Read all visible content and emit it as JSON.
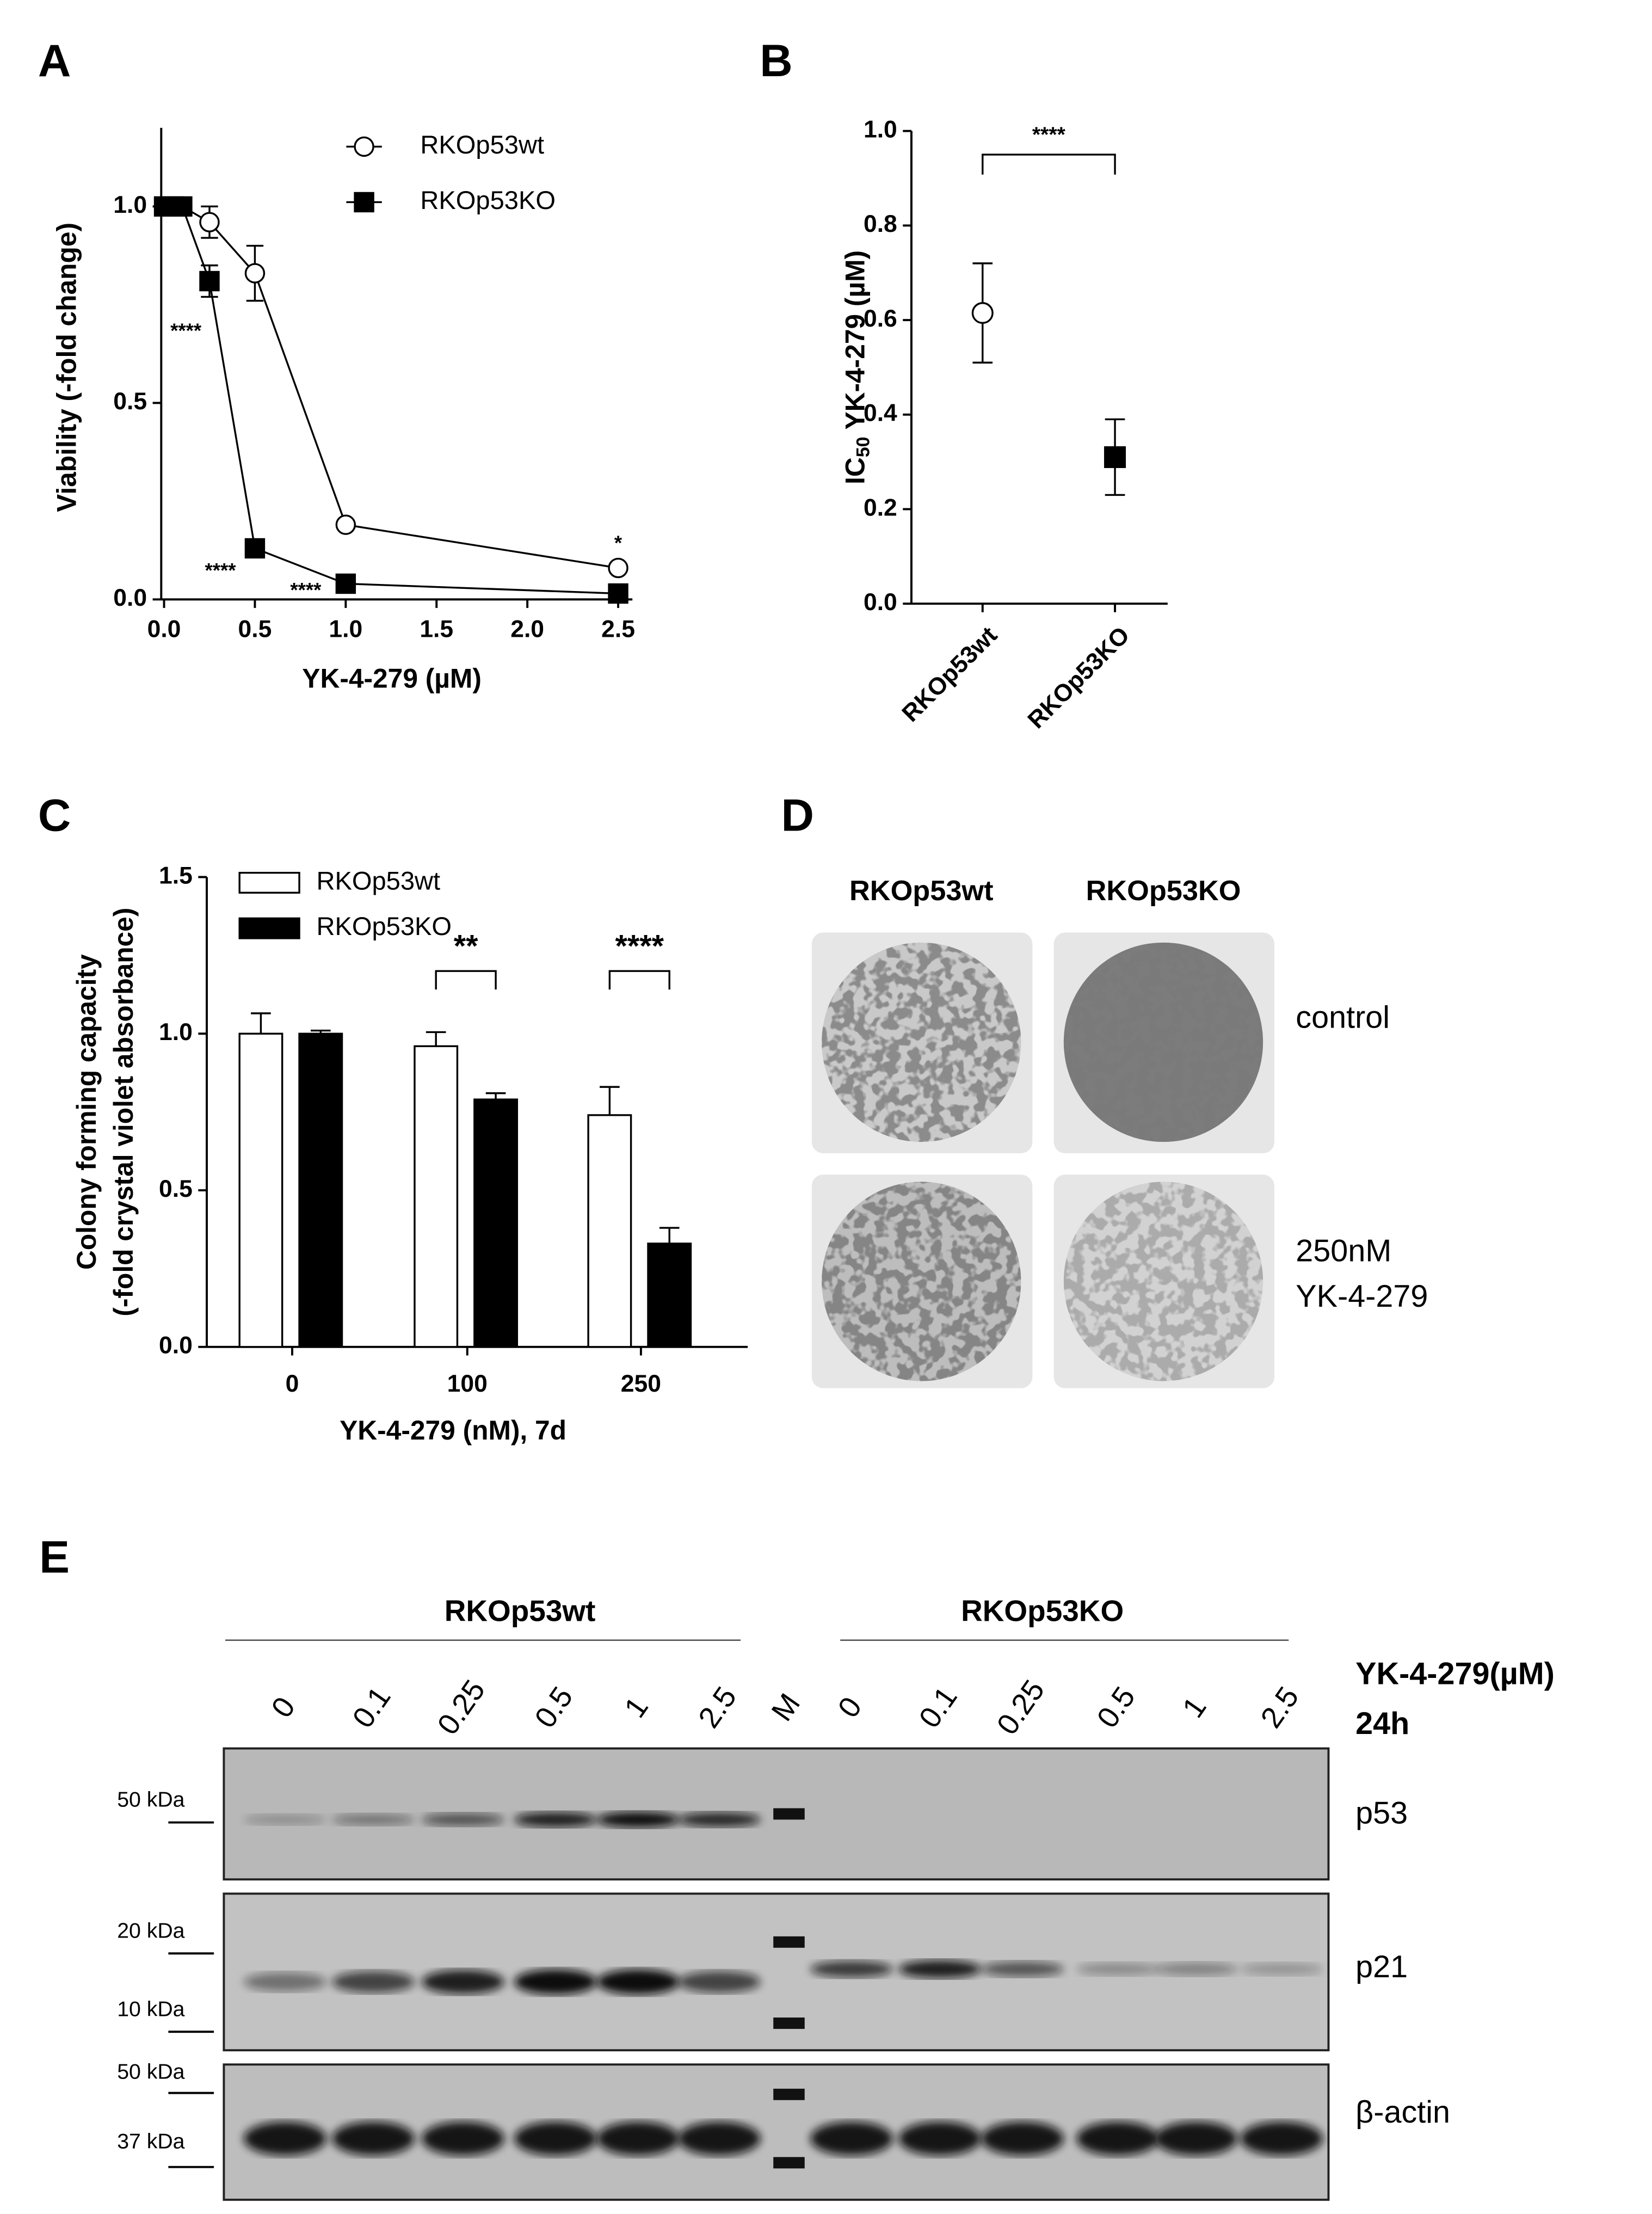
{
  "chart_data": [
    {
      "panel": "A",
      "type": "line",
      "x_label": "YK-4-279 (µM)",
      "y_label": "Viability (-fold change)",
      "x": [
        0,
        0.05,
        0.1,
        0.25,
        0.5,
        1,
        2.5
      ],
      "series": [
        {
          "name": "RKOp53wt",
          "color": "#ffffff",
          "marker": "circle",
          "values": [
            1.0,
            1.0,
            1.0,
            0.96,
            0.83,
            0.19,
            0.08
          ],
          "errors": [
            0.02,
            0.02,
            0.02,
            0.04,
            0.07,
            0.01,
            0.01
          ]
        },
        {
          "name": "RKOp53KO",
          "color": "#000000",
          "marker": "square",
          "values": [
            1.0,
            1.0,
            1.0,
            0.81,
            0.13,
            0.04,
            0.015
          ],
          "errors": [
            0.02,
            0.02,
            0.02,
            0.04,
            0.01,
            0.01,
            0.01
          ]
        }
      ],
      "xlim": [
        0,
        2.5
      ],
      "ylim": [
        0,
        1.2
      ],
      "xticks": [
        {
          "value": 0,
          "label": "0.0"
        },
        {
          "value": 0.5,
          "label": "0.5"
        },
        {
          "value": 1,
          "label": "1.0"
        },
        {
          "value": 1.5,
          "label": "1.5"
        },
        {
          "value": 2,
          "label": "2.0"
        },
        2.5
      ],
      "yticks": [
        {
          "value": 0,
          "label": "0.0"
        },
        0.5,
        {
          "value": 1,
          "label": "1.0"
        }
      ],
      "annotations": [
        {
          "text": "****",
          "x": 0.12,
          "y": 0.68
        },
        {
          "text": "****",
          "x": 0.31,
          "y": 0.07
        },
        {
          "text": "****",
          "x": 0.78,
          "y": 0.02
        },
        {
          "text": "*",
          "x": 2.5,
          "y": 0.14
        }
      ]
    },
    {
      "panel": "B",
      "type": "scatter",
      "y_label": {
        "prefix": "IC",
        "sub": "50",
        "rest": " YK-4-279 (µM)"
      },
      "categories": [
        "RKOp53wt",
        "RKOp53KO"
      ],
      "values": [
        0.615,
        0.31
      ],
      "errors": [
        0.105,
        0.08
      ],
      "markers": [
        "circle",
        "square"
      ],
      "colors": [
        "#ffffff",
        "#000000"
      ],
      "ylim": [
        0,
        1.0
      ],
      "yticks": [
        {
          "value": 0,
          "label": "0.0"
        },
        0.2,
        0.4,
        0.6,
        0.8,
        {
          "value": 1,
          "label": "1.0"
        }
      ],
      "annotations": [
        {
          "text": "****",
          "between": [
            0,
            1
          ],
          "y": 0.95
        }
      ]
    },
    {
      "panel": "C",
      "type": "bar",
      "x_label": "YK-4-279 (nM), 7d",
      "y_label": [
        "Colony forming capacity",
        "(-fold crystal violet absorbance)"
      ],
      "categories": [
        "0",
        "100",
        "250"
      ],
      "series": [
        {
          "name": "RKOp53wt",
          "color": "#ffffff",
          "values": [
            1.0,
            0.96,
            0.74
          ],
          "errors": [
            0.065,
            0.045,
            0.09
          ]
        },
        {
          "name": "RKOp53KO",
          "color": "#000000",
          "values": [
            1.0,
            0.79,
            0.33
          ],
          "errors": [
            0.01,
            0.02,
            0.05
          ]
        }
      ],
      "ylim": [
        0,
        1.5
      ],
      "yticks": [
        {
          "value": 0,
          "label": "0.0"
        },
        0.5,
        {
          "value": 1,
          "label": "1.0"
        },
        1.5
      ],
      "annotations": [
        {
          "text": "**",
          "category": 1,
          "y": 1.2
        },
        {
          "text": "****",
          "category": 2,
          "y": 1.2
        }
      ]
    }
  ],
  "panel_d": {
    "label": "D",
    "columns": [
      "RKOp53wt",
      "RKOp53KO"
    ],
    "rows": [
      [
        "control"
      ],
      [
        "250nM",
        "YK-4-279"
      ]
    ]
  },
  "panel_e": {
    "label": "E",
    "groups": [
      "RKOp53wt",
      "RKOp53KO"
    ],
    "lanes": [
      "0",
      "0.1",
      "0.25",
      "0.5",
      "1",
      "2.5",
      "M",
      "0",
      "0.1",
      "0.25",
      "0.5",
      "1",
      "2.5"
    ],
    "treatment": [
      "YK-4-279(µM)",
      "24h"
    ],
    "markers": [
      "50 kDa",
      "20 kDa",
      "10 kDa",
      "50 kDa",
      "37 kDa"
    ],
    "proteins": [
      "p53",
      "p21",
      "β-actin"
    ]
  }
}
